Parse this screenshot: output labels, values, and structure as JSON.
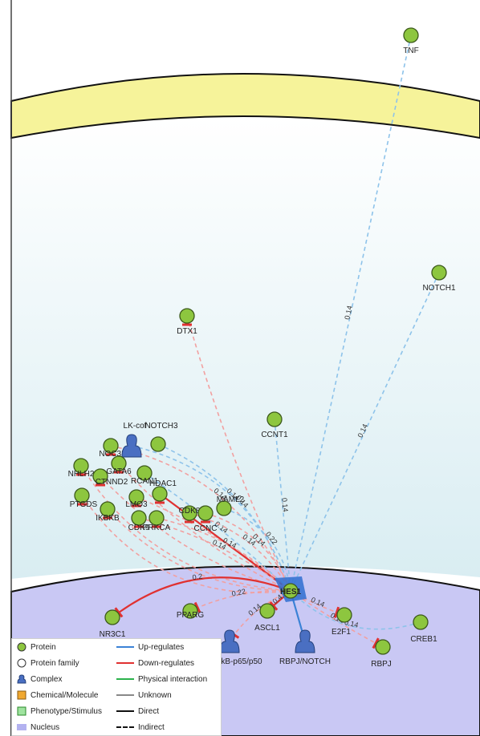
{
  "colors": {
    "membrane": "#f6f39a",
    "membrane_stroke": "#111111",
    "cytoplasm_top": "#ffffff",
    "cytoplasm_bottom": "#dbeef3",
    "nucleus": "#c9c8f4",
    "protein": "#8dc63f",
    "complex": "#4a6fc2",
    "up": "#3b82d6",
    "down": "#e03131",
    "down_light": "#f2a0a0",
    "up_light": "#8ec3ea",
    "physical": "#2bb24c",
    "unknown": "#888888",
    "chemical": "#f0a830",
    "phenotype": "#9fe39f"
  },
  "nodes": [
    {
      "id": "TNF",
      "label": "TNF",
      "type": "protein"
    },
    {
      "id": "NOTCH1",
      "label": "NOTCH1",
      "type": "protein"
    },
    {
      "id": "DTX1",
      "label": "DTX1",
      "type": "protein"
    },
    {
      "id": "CCNT1",
      "label": "CCNT1",
      "type": "protein"
    },
    {
      "id": "NOTCH3",
      "label": "NOTCH3",
      "type": "protein"
    },
    {
      "id": "NOC3L",
      "label": "NOC3L",
      "type": "protein"
    },
    {
      "id": "LK-cof",
      "label": "LK-cof",
      "type": "complex"
    },
    {
      "id": "GATA6",
      "label": "GATA6",
      "type": "protein"
    },
    {
      "id": "NHLH2",
      "label": "NHLH2",
      "type": "protein"
    },
    {
      "id": "CTNND2",
      "label": "CTNND2",
      "type": "protein"
    },
    {
      "id": "RCAN1",
      "label": "RCAN1",
      "type": "protein"
    },
    {
      "id": "PTGDS",
      "label": "PTGDS",
      "type": "protein"
    },
    {
      "id": "IKBKB",
      "label": "IKBKB",
      "type": "protein"
    },
    {
      "id": "LMO3",
      "label": "LMO3",
      "type": "protein"
    },
    {
      "id": "HDAC1",
      "label": "HDAC1",
      "type": "protein"
    },
    {
      "id": "CDK9",
      "label": "CDK9",
      "type": "protein"
    },
    {
      "id": "PRKCA",
      "label": "PRKCA",
      "type": "protein"
    },
    {
      "id": "CDK8",
      "label": "CDK8",
      "type": "protein"
    },
    {
      "id": "CCNC",
      "label": "CCNC",
      "type": "protein"
    },
    {
      "id": "MAML2",
      "label": "MAML2",
      "type": "protein"
    },
    {
      "id": "HES1",
      "label": "HES1",
      "type": "protein"
    },
    {
      "id": "ASCL1",
      "label": "ASCL1",
      "type": "protein"
    },
    {
      "id": "E2F1",
      "label": "E2F1",
      "type": "protein"
    },
    {
      "id": "CREB1",
      "label": "CREB1",
      "type": "protein"
    },
    {
      "id": "RBPJ",
      "label": "RBPJ",
      "type": "protein"
    },
    {
      "id": "RBPJ/NOTCH",
      "label": "RBPJ/NOTCH",
      "type": "complex"
    },
    {
      "id": "NfkB-p65/p50",
      "label": "NfkB-p65/p50",
      "type": "complex"
    },
    {
      "id": "PPARG",
      "label": "PPARG",
      "type": "protein"
    },
    {
      "id": "NR3C1",
      "label": "NR3C1",
      "type": "protein"
    }
  ],
  "edges": [
    {
      "from": "TNF",
      "to": "HES1",
      "kind": "up",
      "style": "dashed",
      "weight": "0.14"
    },
    {
      "from": "NOTCH1",
      "to": "HES1",
      "kind": "up",
      "style": "dashed",
      "weight": "0.14"
    },
    {
      "from": "DTX1",
      "to": "HES1",
      "kind": "down",
      "style": "dashed",
      "weight": ""
    },
    {
      "from": "CCNT1",
      "to": "HES1",
      "kind": "up",
      "style": "dashed",
      "weight": "0.14"
    },
    {
      "from": "NOTCH3",
      "to": "HES1",
      "kind": "up",
      "style": "dashed",
      "weight": "0.14"
    },
    {
      "from": "NOC3L",
      "to": "HES1",
      "kind": "down",
      "style": "dashed",
      "weight": "0.14"
    },
    {
      "from": "LK-cof",
      "to": "HES1",
      "kind": "up",
      "style": "dashed",
      "weight": "0.14"
    },
    {
      "from": "GATA6",
      "to": "HES1",
      "kind": "down",
      "style": "dashed",
      "weight": ""
    },
    {
      "from": "NHLH2",
      "to": "HES1",
      "kind": "down",
      "style": "dashed",
      "weight": ""
    },
    {
      "from": "CTNND2",
      "to": "HES1",
      "kind": "down",
      "style": "dashed",
      "weight": ""
    },
    {
      "from": "RCAN1",
      "to": "HES1",
      "kind": "up",
      "style": "dashed",
      "weight": "0.14"
    },
    {
      "from": "PTGDS",
      "to": "HES1",
      "kind": "down",
      "style": "dashed",
      "weight": ""
    },
    {
      "from": "IKBKB",
      "to": "HES1",
      "kind": "down",
      "style": "dashed",
      "weight": ""
    },
    {
      "from": "LMO3",
      "to": "HES1",
      "kind": "down",
      "style": "dashed",
      "weight": ""
    },
    {
      "from": "HDAC1",
      "to": "HES1",
      "kind": "down",
      "style": "solid",
      "weight": ""
    },
    {
      "from": "CDK9",
      "to": "HES1",
      "kind": "down",
      "style": "dashed",
      "weight": "0.14"
    },
    {
      "from": "PRKCA",
      "to": "HES1",
      "kind": "down",
      "style": "dashed",
      "weight": "0.14"
    },
    {
      "from": "CDK8",
      "to": "HES1",
      "kind": "down",
      "style": "dashed",
      "weight": "0.14"
    },
    {
      "from": "CCNC",
      "to": "HES1",
      "kind": "down",
      "style": "dashed",
      "weight": "0.14"
    },
    {
      "from": "MAML2",
      "to": "HES1",
      "kind": "up",
      "style": "dashed",
      "weight": "0.22"
    },
    {
      "from": "HES1",
      "to": "ASCL1",
      "kind": "down",
      "style": "solid",
      "weight": "0.4"
    },
    {
      "from": "HES1",
      "to": "E2F1",
      "kind": "down",
      "style": "dashed",
      "weight": "0.14"
    },
    {
      "from": "HES1",
      "to": "RBPJ",
      "kind": "down",
      "style": "dashed",
      "weight": "0.14"
    },
    {
      "from": "HES1",
      "to": "CREB1",
      "kind": "up",
      "style": "dashed",
      "weight": "0.14"
    },
    {
      "from": "HES1",
      "to": "PPARG",
      "kind": "down",
      "style": "dashed",
      "weight": "0.22"
    },
    {
      "from": "HES1",
      "to": "NR3C1",
      "kind": "down",
      "style": "solid",
      "weight": "0.2"
    },
    {
      "from": "HES1",
      "to": "NfkB-p65/p50",
      "kind": "down",
      "style": "dashed",
      "weight": "0.14"
    },
    {
      "from": "HES1",
      "to": "RBPJ/NOTCH",
      "kind": "up",
      "style": "solid",
      "weight": ""
    }
  ],
  "legend": {
    "nodes": [
      {
        "label": "Protein",
        "icon": "protein"
      },
      {
        "label": "Protein family",
        "icon": "protein-family"
      },
      {
        "label": "Complex",
        "icon": "complex"
      },
      {
        "label": "Chemical/Molecule",
        "icon": "chemical"
      },
      {
        "label": "Phenotype/Stimulus",
        "icon": "phenotype"
      },
      {
        "label": "Nucleus",
        "icon": "nucleus"
      }
    ],
    "edges": [
      {
        "label": "Up-regulates",
        "kind": "up"
      },
      {
        "label": "Down-regulates",
        "kind": "down"
      },
      {
        "label": "Physical interaction",
        "kind": "physical"
      },
      {
        "label": "Unknown",
        "kind": "unknown"
      },
      {
        "label": "Direct",
        "kind": "direct"
      },
      {
        "label": "Indirect",
        "kind": "indirect"
      }
    ]
  }
}
